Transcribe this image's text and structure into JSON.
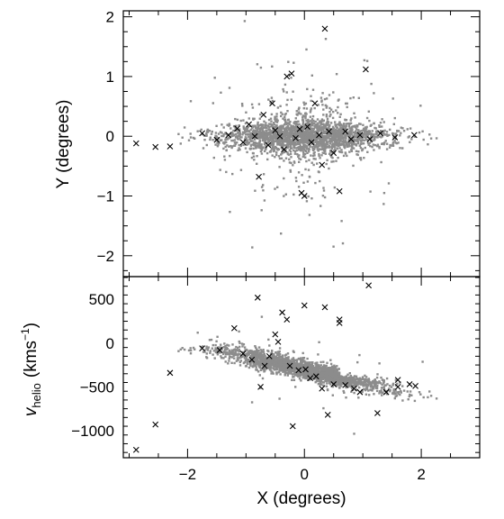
{
  "chart_data": [
    {
      "type": "scatter",
      "panel": "top",
      "xlabel": "",
      "ylabel": "Y (degrees)",
      "xlim": [
        -3.1,
        3.0
      ],
      "ylim": [
        -2.35,
        2.1
      ],
      "xticks": [
        -2,
        0,
        2
      ],
      "yticks": [
        -2,
        -1,
        0,
        1,
        2
      ],
      "ytick_labels": [
        "−2",
        "−1",
        "0",
        "1",
        "2"
      ],
      "grid": false,
      "background_cloud": {
        "marker": "small grey square",
        "color": "#8c8c8c",
        "count_approx": 2200,
        "distribution": "elongated along Y≈0, |X|<2.3, spread ≈0.25 in Y with a sparse halo up to |Y|≈2"
      },
      "series": [
        {
          "marker": "x",
          "color": "#000000",
          "points": [
            [
              -2.88,
              -0.12
            ],
            [
              -2.55,
              -0.18
            ],
            [
              -2.3,
              -0.17
            ],
            [
              -1.75,
              0.05
            ],
            [
              -1.5,
              -0.06
            ],
            [
              -1.3,
              0.02
            ],
            [
              -1.15,
              0.13
            ],
            [
              -1.05,
              -0.1
            ],
            [
              -0.95,
              0.2
            ],
            [
              -0.85,
              0.0
            ],
            [
              -0.78,
              -0.68
            ],
            [
              -0.7,
              0.36
            ],
            [
              -0.62,
              -0.15
            ],
            [
              -0.55,
              0.55
            ],
            [
              -0.5,
              0.1
            ],
            [
              -0.42,
              0.0
            ],
            [
              -0.35,
              -0.22
            ],
            [
              -0.3,
              1.0
            ],
            [
              -0.22,
              1.05
            ],
            [
              -0.15,
              -0.03
            ],
            [
              -0.08,
              0.12
            ],
            [
              -0.05,
              -0.95
            ],
            [
              0.0,
              -1.0
            ],
            [
              0.05,
              0.16
            ],
            [
              0.12,
              -0.1
            ],
            [
              0.18,
              0.55
            ],
            [
              0.25,
              0.02
            ],
            [
              0.3,
              -0.48
            ],
            [
              0.35,
              1.8
            ],
            [
              0.42,
              0.08
            ],
            [
              0.5,
              -0.28
            ],
            [
              0.6,
              -0.92
            ],
            [
              0.7,
              0.08
            ],
            [
              0.8,
              -0.05
            ],
            [
              0.95,
              0.02
            ],
            [
              1.05,
              1.12
            ],
            [
              1.12,
              -0.05
            ],
            [
              1.3,
              0.05
            ],
            [
              1.55,
              -0.02
            ],
            [
              1.88,
              0.02
            ]
          ]
        }
      ]
    },
    {
      "type": "scatter",
      "panel": "bottom",
      "xlabel": "X (degrees)",
      "ylabel": "v_helio (kms^-1)",
      "ylabel_parts": {
        "v": "v",
        "sub": "helio",
        "open": "(kms",
        "sup": "−1",
        "close": ")"
      },
      "xlim": [
        -3.1,
        3.0
      ],
      "ylim": [
        -1310,
        760
      ],
      "xticks": [
        -2,
        0,
        2
      ],
      "xtick_labels": [
        "−2",
        "0",
        "2"
      ],
      "yticks": [
        -1000,
        -500,
        0,
        500
      ],
      "ytick_labels": [
        "−1000",
        "−500",
        "0",
        "500"
      ],
      "grid": false,
      "background_cloud": {
        "marker": "small grey square",
        "color": "#8c8c8c",
        "count_approx": 2200,
        "distribution": "rotation band: v ≈ -300 - 150·X km/s, dispersion ≈60 km/s, flattening near -500 km/s for X>0.6"
      },
      "series": [
        {
          "marker": "x",
          "color": "#000000",
          "points": [
            [
              -2.88,
              -1220
            ],
            [
              -2.55,
              -930
            ],
            [
              -2.3,
              -340
            ],
            [
              -1.75,
              -60
            ],
            [
              -1.45,
              -80
            ],
            [
              -1.2,
              170
            ],
            [
              -1.05,
              -120
            ],
            [
              -0.9,
              -190
            ],
            [
              -0.8,
              520
            ],
            [
              -0.75,
              -500
            ],
            [
              -0.68,
              -260
            ],
            [
              -0.6,
              -150
            ],
            [
              -0.5,
              100
            ],
            [
              -0.45,
              15
            ],
            [
              -0.38,
              350
            ],
            [
              -0.3,
              270
            ],
            [
              -0.25,
              -260
            ],
            [
              -0.2,
              -950
            ],
            [
              -0.1,
              -310
            ],
            [
              0.0,
              430
            ],
            [
              0.02,
              -300
            ],
            [
              0.1,
              -400
            ],
            [
              0.2,
              -380
            ],
            [
              0.3,
              -520
            ],
            [
              0.35,
              410
            ],
            [
              0.4,
              -820
            ],
            [
              0.5,
              -470
            ],
            [
              0.6,
              270
            ],
            [
              0.6,
              230
            ],
            [
              0.7,
              -480
            ],
            [
              0.85,
              -520
            ],
            [
              0.95,
              -560
            ],
            [
              1.1,
              660
            ],
            [
              1.25,
              -800
            ],
            [
              1.4,
              -560
            ],
            [
              1.6,
              -420
            ],
            [
              1.6,
              -500
            ],
            [
              1.8,
              -470
            ],
            [
              1.9,
              -490
            ]
          ]
        }
      ]
    }
  ]
}
